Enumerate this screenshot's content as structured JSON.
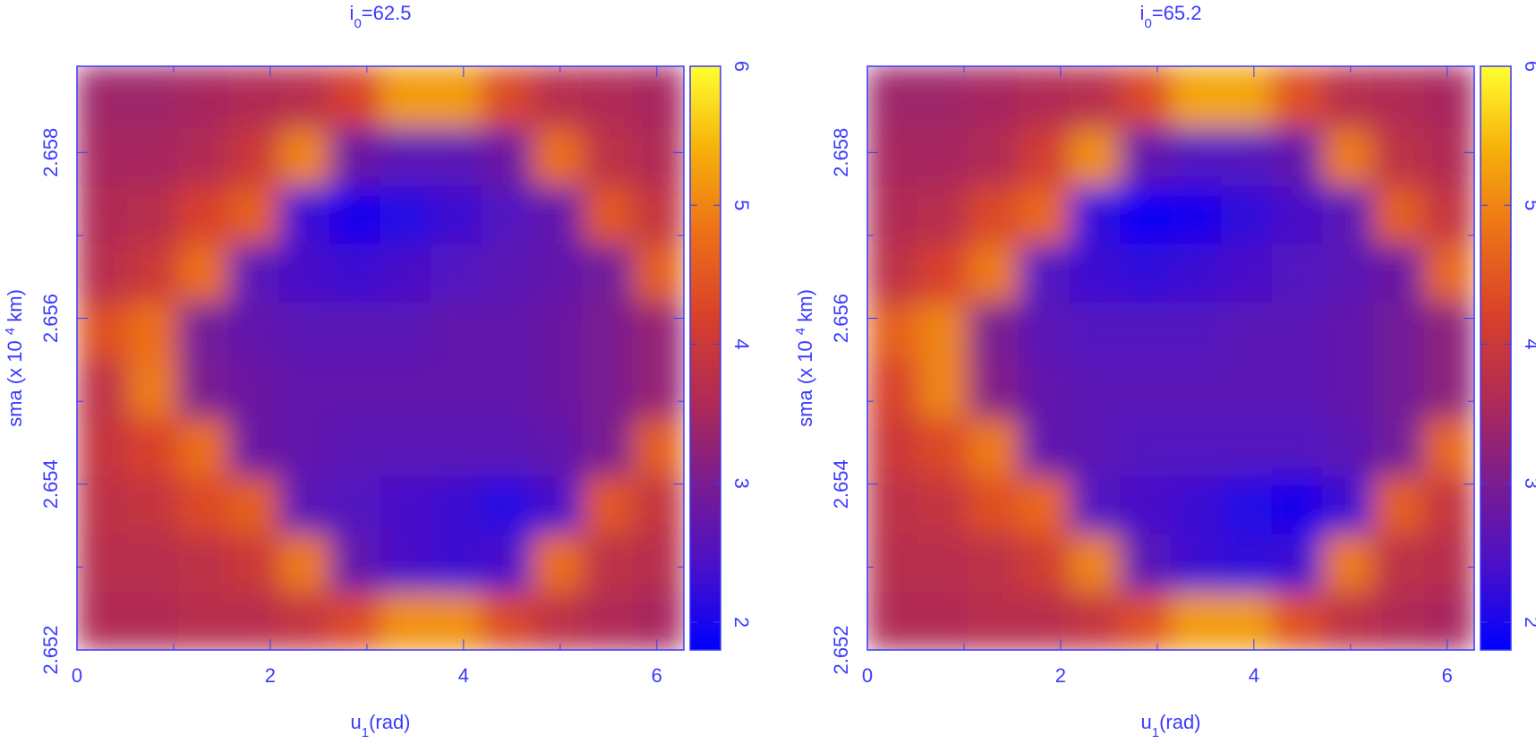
{
  "chart_data": [
    {
      "type": "heatmap",
      "title": {
        "base": "i",
        "sub": "0",
        "tail": "=62.5"
      },
      "xlabel": {
        "base": "u",
        "sub": "1",
        "tail": "(rad)"
      },
      "ylabel": {
        "base": "sma (x 10 ",
        "sup": "4",
        "tail": " km)"
      },
      "xlim": [
        0,
        6.28
      ],
      "ylim": [
        2.652,
        2.65904
      ],
      "xticks": [
        0,
        2,
        4,
        6
      ],
      "xminor": [
        1,
        3,
        5
      ],
      "yticks": [
        2.652,
        2.654,
        2.656,
        2.658
      ],
      "yminor": [
        2.653,
        2.655,
        2.657
      ],
      "xbins": [
        0,
        0.523,
        1.047,
        1.57,
        2.094,
        2.617,
        3.141,
        3.664,
        4.188,
        4.711,
        5.235,
        5.758,
        6.28
      ],
      "ybins": [
        2.652,
        2.6527,
        2.6534,
        2.6541,
        2.6548,
        2.6555,
        2.6562,
        2.6569,
        2.6576,
        2.6583,
        2.65904
      ],
      "z": [
        [
          3.6,
          3.6,
          3.7,
          3.7,
          3.9,
          4.3,
          5.1,
          5.1,
          4.3,
          3.8,
          3.6,
          3.5
        ],
        [
          3.7,
          3.7,
          3.8,
          4.0,
          4.9,
          2.7,
          2.4,
          2.3,
          2.4,
          4.8,
          3.8,
          3.7
        ],
        [
          3.8,
          3.9,
          4.3,
          4.6,
          2.6,
          2.5,
          2.4,
          2.3,
          2.1,
          2.4,
          4.5,
          3.9
        ],
        [
          3.9,
          4.2,
          4.8,
          2.8,
          2.7,
          2.6,
          2.6,
          2.6,
          2.6,
          2.7,
          3.0,
          4.6
        ],
        [
          3.8,
          4.9,
          3.0,
          2.8,
          2.7,
          2.7,
          2.7,
          2.7,
          2.7,
          2.8,
          3.0,
          3.3
        ],
        [
          4.4,
          4.8,
          2.9,
          2.7,
          2.6,
          2.6,
          2.6,
          2.7,
          2.7,
          2.8,
          3.0,
          3.3
        ],
        [
          3.7,
          4.0,
          4.8,
          2.6,
          2.4,
          2.3,
          2.4,
          2.5,
          2.6,
          2.7,
          2.9,
          4.6
        ],
        [
          3.6,
          3.7,
          4.2,
          4.6,
          2.3,
          2.0,
          2.1,
          2.3,
          2.5,
          2.7,
          4.5,
          3.9
        ],
        [
          3.5,
          3.5,
          3.6,
          4.0,
          5.0,
          2.8,
          2.6,
          2.6,
          2.8,
          4.8,
          3.8,
          3.6
        ],
        [
          3.4,
          3.4,
          3.5,
          3.6,
          3.7,
          4.2,
          5.2,
          5.2,
          4.3,
          3.7,
          3.6,
          3.5
        ]
      ],
      "clim": [
        1.8,
        6
      ],
      "cticks": [
        2,
        3,
        4,
        5,
        6
      ],
      "colormap": [
        "#0000ff",
        "#4a10c8",
        "#7a1c90",
        "#b02a55",
        "#d8402a",
        "#ec7018",
        "#f6b00a",
        "#ffff30"
      ],
      "color": "#3a3aff"
    },
    {
      "type": "heatmap",
      "title": {
        "base": "i",
        "sub": "0",
        "tail": "=65.2"
      },
      "xlabel": {
        "base": "u",
        "sub": "1",
        "tail": "(rad)"
      },
      "ylabel": {
        "base": "sma (x 10 ",
        "sup": "4",
        "tail": " km)"
      },
      "xlim": [
        0,
        6.28
      ],
      "ylim": [
        2.652,
        2.65904
      ],
      "xticks": [
        0,
        2,
        4,
        6
      ],
      "xminor": [
        1,
        3,
        5
      ],
      "yticks": [
        2.652,
        2.654,
        2.656,
        2.658
      ],
      "yminor": [
        2.653,
        2.655,
        2.657
      ],
      "xbins": [
        0,
        0.523,
        1.047,
        1.57,
        2.094,
        2.617,
        3.141,
        3.664,
        4.188,
        4.711,
        5.235,
        5.758,
        6.28
      ],
      "ybins": [
        2.652,
        2.6527,
        2.6534,
        2.6541,
        2.6548,
        2.6555,
        2.6562,
        2.6569,
        2.6576,
        2.6583,
        2.65904
      ],
      "z": [
        [
          3.6,
          3.6,
          3.7,
          3.7,
          3.9,
          4.4,
          5.2,
          5.2,
          4.4,
          3.8,
          3.6,
          3.5
        ],
        [
          3.7,
          3.7,
          3.8,
          4.1,
          5.0,
          2.6,
          2.3,
          2.2,
          2.3,
          4.9,
          3.8,
          3.7
        ],
        [
          3.8,
          3.9,
          4.4,
          4.7,
          2.5,
          2.4,
          2.3,
          2.1,
          2.0,
          2.3,
          4.6,
          3.9
        ],
        [
          4.0,
          4.3,
          4.9,
          2.7,
          2.6,
          2.5,
          2.5,
          2.5,
          2.5,
          2.6,
          2.9,
          4.7
        ],
        [
          4.2,
          5.0,
          3.1,
          2.7,
          2.6,
          2.6,
          2.6,
          2.6,
          2.6,
          2.7,
          2.9,
          3.2
        ],
        [
          4.6,
          5.0,
          3.0,
          2.6,
          2.5,
          2.5,
          2.5,
          2.6,
          2.6,
          2.7,
          2.9,
          3.2
        ],
        [
          3.8,
          4.2,
          4.9,
          2.5,
          2.3,
          2.2,
          2.3,
          2.4,
          2.5,
          2.6,
          2.8,
          4.7
        ],
        [
          3.6,
          3.7,
          4.3,
          4.7,
          2.2,
          1.9,
          2.0,
          2.2,
          2.4,
          2.6,
          4.6,
          3.9
        ],
        [
          3.5,
          3.5,
          3.6,
          4.1,
          5.1,
          2.7,
          2.5,
          2.5,
          2.7,
          4.9,
          3.8,
          3.6
        ],
        [
          3.4,
          3.4,
          3.5,
          3.6,
          3.7,
          4.3,
          5.3,
          5.3,
          4.4,
          3.7,
          3.6,
          3.5
        ]
      ],
      "clim": [
        1.8,
        6
      ],
      "cticks": [
        2,
        3,
        4,
        5,
        6
      ],
      "colormap": [
        "#0000ff",
        "#4a10c8",
        "#7a1c90",
        "#b02a55",
        "#d8402a",
        "#ec7018",
        "#f6b00a",
        "#ffff30"
      ],
      "color": "#3a3aff"
    }
  ]
}
